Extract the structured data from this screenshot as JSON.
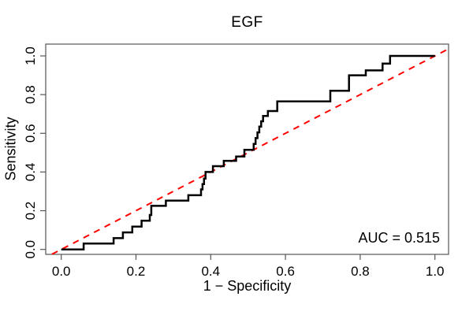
{
  "figure": {
    "title": "EGF",
    "x_label": "1 − Specificity",
    "y_label": "Sensitivity",
    "auc_label": "AUC = 0.515"
  },
  "colors": {
    "roc_curve": "#000000",
    "chance_line": "#ff0000",
    "frame": "#555555",
    "background": "#ffffff"
  },
  "chart_data": {
    "type": "line",
    "subtype": "roc-step-curve",
    "title": "EGF",
    "xlabel": "1 − Specificity",
    "ylabel": "Sensitivity",
    "xlim": [
      0,
      1
    ],
    "ylim": [
      0,
      1
    ],
    "grid": false,
    "legend_position": "none",
    "x_ticks": [
      "0.0",
      "0.2",
      "0.4",
      "0.6",
      "0.8",
      "1.0"
    ],
    "y_ticks": [
      "0.0",
      "0.2",
      "0.4",
      "0.6",
      "0.8",
      "1.0"
    ],
    "auc": 0.515,
    "annotation": "AUC = 0.515",
    "series": [
      {
        "name": "ROC step curve",
        "style": "solid",
        "color": "#000000",
        "points": [
          [
            0.0,
            0.0
          ],
          [
            0.06,
            0.0
          ],
          [
            0.06,
            0.03
          ],
          [
            0.14,
            0.03
          ],
          [
            0.14,
            0.058
          ],
          [
            0.165,
            0.058
          ],
          [
            0.165,
            0.088
          ],
          [
            0.19,
            0.088
          ],
          [
            0.19,
            0.118
          ],
          [
            0.215,
            0.118
          ],
          [
            0.215,
            0.148
          ],
          [
            0.237,
            0.148
          ],
          [
            0.237,
            0.178
          ],
          [
            0.241,
            0.178
          ],
          [
            0.241,
            0.225
          ],
          [
            0.28,
            0.225
          ],
          [
            0.28,
            0.252
          ],
          [
            0.34,
            0.252
          ],
          [
            0.34,
            0.28
          ],
          [
            0.374,
            0.28
          ],
          [
            0.374,
            0.31
          ],
          [
            0.378,
            0.31
          ],
          [
            0.378,
            0.338
          ],
          [
            0.382,
            0.338
          ],
          [
            0.382,
            0.366
          ],
          [
            0.386,
            0.366
          ],
          [
            0.386,
            0.4
          ],
          [
            0.406,
            0.4
          ],
          [
            0.406,
            0.43
          ],
          [
            0.435,
            0.43
          ],
          [
            0.435,
            0.458
          ],
          [
            0.468,
            0.458
          ],
          [
            0.468,
            0.48
          ],
          [
            0.49,
            0.48
          ],
          [
            0.49,
            0.515
          ],
          [
            0.515,
            0.515
          ],
          [
            0.515,
            0.545
          ],
          [
            0.52,
            0.545
          ],
          [
            0.52,
            0.575
          ],
          [
            0.525,
            0.575
          ],
          [
            0.525,
            0.605
          ],
          [
            0.53,
            0.605
          ],
          [
            0.53,
            0.635
          ],
          [
            0.535,
            0.635
          ],
          [
            0.535,
            0.662
          ],
          [
            0.54,
            0.662
          ],
          [
            0.54,
            0.69
          ],
          [
            0.553,
            0.69
          ],
          [
            0.553,
            0.715
          ],
          [
            0.578,
            0.715
          ],
          [
            0.578,
            0.765
          ],
          [
            0.72,
            0.765
          ],
          [
            0.72,
            0.82
          ],
          [
            0.77,
            0.82
          ],
          [
            0.77,
            0.9
          ],
          [
            0.815,
            0.9
          ],
          [
            0.815,
            0.925
          ],
          [
            0.86,
            0.925
          ],
          [
            0.86,
            0.96
          ],
          [
            0.88,
            0.96
          ],
          [
            0.88,
            1.0
          ],
          [
            1.0,
            1.0
          ]
        ]
      },
      {
        "name": "Chance diagonal",
        "style": "dashed",
        "color": "#ff0000",
        "points": [
          [
            0,
            0
          ],
          [
            1,
            1
          ]
        ]
      }
    ]
  }
}
